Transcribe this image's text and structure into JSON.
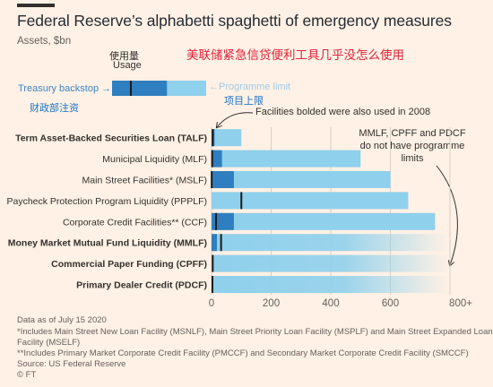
{
  "title": "Federal Reserve’s alphabetti spaghetti of emergency measures",
  "subtitle": "Assets, $bn",
  "annotations": {
    "chinese_title": "美联储紧急信贷便利工具几乎没怎么使用",
    "usage_cn": "使用量",
    "usage_en": "Usage",
    "treasury_backstop": "Treasury backstop",
    "treasury_backstop_cn": "财政部注资",
    "programme_limit": "Programme limit",
    "programme_limit_cn": "项目上限",
    "used_2008": "Facilities bolded were also used in 2008",
    "no_limits": "MMLF, CPFF and PDCF do not have programme limits"
  },
  "legend_example": {
    "treasury_backstop": 10,
    "usage": 12,
    "programme_limit": 60
  },
  "colors": {
    "background": "#fff1e5",
    "treasury_backstop": "#2f7ebf",
    "programme_limit": "#8fd0ec",
    "usage_marker": "#1a1a1a",
    "grid": "#d9cfc4"
  },
  "chart_data": {
    "type": "bar",
    "orientation": "horizontal",
    "xlim": [
      0,
      800
    ],
    "x_ticks": [
      "0",
      "200",
      "400",
      "600",
      "800+"
    ],
    "categories": [
      "Term Asset-Backed Securities Loan (TALF)",
      "Municipal Liquidity (MLF)",
      "Main Street Facilities* (MSLF)",
      "Paycheck Protection Program Liquidity (PPPLF)",
      "Corporate Credit Facilities** (CCF)",
      "Money Market Mutual Fund Liquidity (MMLF)",
      "Commercial Paper Funding (CPFF)",
      "Primary Dealer Credit (PDCF)"
    ],
    "bold": [
      true,
      false,
      false,
      false,
      false,
      true,
      true,
      true
    ],
    "no_limit": [
      false,
      false,
      false,
      false,
      false,
      true,
      true,
      true
    ],
    "series": [
      {
        "name": "Treasury backstop",
        "values": [
          10,
          35,
          75,
          0,
          75,
          18,
          0,
          0
        ]
      },
      {
        "name": "Usage",
        "values": [
          4,
          2,
          0.5,
          100,
          15,
          32,
          4,
          3
        ]
      },
      {
        "name": "Programme limit",
        "values": [
          100,
          500,
          600,
          660,
          750,
          800,
          800,
          800
        ]
      }
    ]
  },
  "footnotes": [
    "Data as of July 15 2020",
    "*Includes Main Street New Loan Facility (MSNLF), Main Street Priority Loan Facility (MSPLF) and Main Street Expanded Loan",
    "Facility (MSELF)",
    "**Includes Primary Market Corporate Credit Facility (PMCCF) and Secondary Market Corporate Credit Facility (SMCCF)",
    "Source: US Federal Reserve",
    "© FT"
  ]
}
